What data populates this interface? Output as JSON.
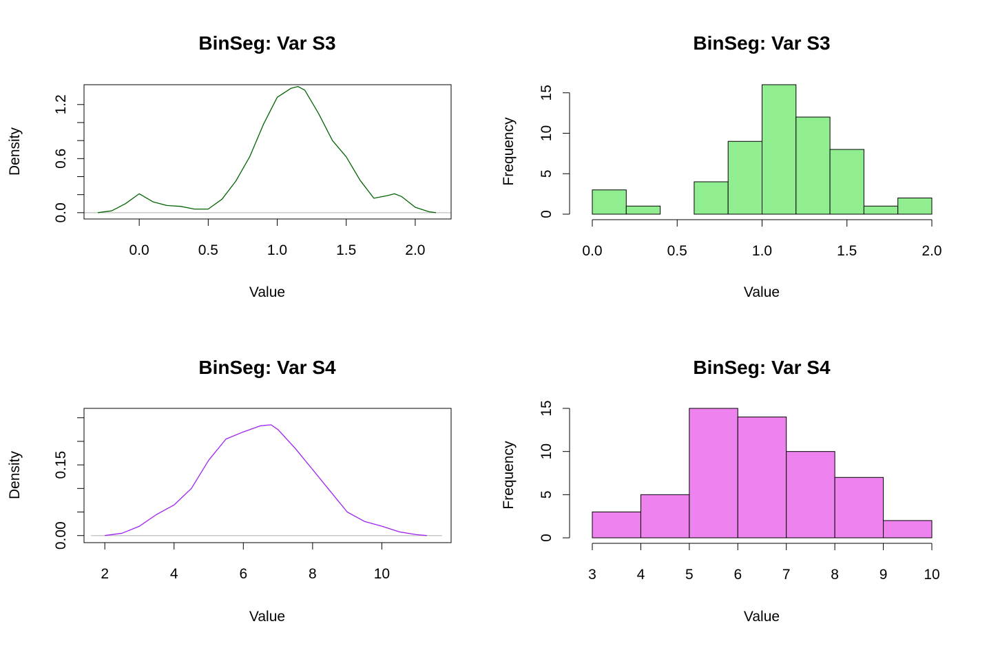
{
  "chart_data": [
    {
      "type": "line",
      "title": "BinSeg: Var S3",
      "xlabel": "Value",
      "ylabel": "Density",
      "xlim": [
        -0.4,
        2.26
      ],
      "ylim": [
        -0.07,
        1.42
      ],
      "xticks": [
        "0.0",
        "0.5",
        "1.0",
        "1.5",
        "2.0"
      ],
      "xtick_values": [
        0,
        0.5,
        1,
        1.5,
        2
      ],
      "yticks": [
        "0.0",
        "0.6",
        "1.2"
      ],
      "ytick_values": [
        0,
        0.6,
        1.2
      ],
      "minor_ytick_values": [
        0.2,
        0.4,
        0.8,
        1.0
      ],
      "color": "#006400",
      "baseline_color": "#bebebe",
      "x": [
        -0.3,
        -0.2,
        -0.1,
        0.0,
        0.1,
        0.2,
        0.3,
        0.4,
        0.5,
        0.6,
        0.7,
        0.8,
        0.9,
        1.0,
        1.1,
        1.15,
        1.2,
        1.3,
        1.4,
        1.5,
        1.6,
        1.7,
        1.8,
        1.85,
        1.9,
        2.0,
        2.1,
        2.15
      ],
      "y": [
        0.0,
        0.02,
        0.1,
        0.21,
        0.12,
        0.08,
        0.07,
        0.04,
        0.04,
        0.15,
        0.35,
        0.62,
        0.98,
        1.28,
        1.38,
        1.4,
        1.36,
        1.1,
        0.8,
        0.62,
        0.36,
        0.16,
        0.19,
        0.21,
        0.18,
        0.06,
        0.01,
        0.0
      ]
    },
    {
      "type": "bar",
      "title": "BinSeg: Var S3",
      "xlabel": "Value",
      "ylabel": "Frequency",
      "xlim": [
        0,
        2
      ],
      "ylim": [
        0,
        16
      ],
      "xticks": [
        "0.0",
        "0.5",
        "1.0",
        "1.5",
        "2.0"
      ],
      "xtick_values": [
        0,
        0.5,
        1,
        1.5,
        2
      ],
      "yticks": [
        "0",
        "5",
        "10",
        "15"
      ],
      "ytick_values": [
        0,
        5,
        10,
        15
      ],
      "bin_edges": [
        0,
        0.2,
        0.4,
        0.6,
        0.8,
        1.0,
        1.2,
        1.4,
        1.6,
        1.8,
        2.0
      ],
      "values": [
        3,
        1,
        0,
        4,
        9,
        16,
        12,
        8,
        1,
        2
      ],
      "color": "#90ee90"
    },
    {
      "type": "line",
      "title": "BinSeg: Var S4",
      "xlabel": "Value",
      "ylabel": "Density",
      "xlim": [
        1.4,
        12.0
      ],
      "ylim": [
        -0.015,
        0.27
      ],
      "xticks": [
        "2",
        "4",
        "6",
        "8",
        "10"
      ],
      "xtick_values": [
        2,
        4,
        6,
        8,
        10
      ],
      "yticks": [
        "0.00",
        "0.15"
      ],
      "ytick_values": [
        0,
        0.15
      ],
      "minor_ytick_values": [
        0.05,
        0.1,
        0.2,
        0.25
      ],
      "color": "#a020f0",
      "baseline_color": "#bebebe",
      "x": [
        2.0,
        2.5,
        3.0,
        3.5,
        4.0,
        4.5,
        5.0,
        5.5,
        6.0,
        6.5,
        6.8,
        7.0,
        7.5,
        8.0,
        8.5,
        9.0,
        9.5,
        10.0,
        10.5,
        11.0,
        11.3
      ],
      "y": [
        0.0,
        0.005,
        0.02,
        0.045,
        0.065,
        0.1,
        0.16,
        0.205,
        0.22,
        0.233,
        0.235,
        0.225,
        0.185,
        0.14,
        0.095,
        0.05,
        0.03,
        0.02,
        0.008,
        0.002,
        0.0
      ]
    },
    {
      "type": "bar",
      "title": "BinSeg: Var S4",
      "xlabel": "Value",
      "ylabel": "Frequency",
      "xlim": [
        3,
        10
      ],
      "ylim": [
        0,
        15
      ],
      "xticks": [
        "3",
        "4",
        "5",
        "6",
        "7",
        "8",
        "9",
        "10"
      ],
      "xtick_values": [
        3,
        4,
        5,
        6,
        7,
        8,
        9,
        10
      ],
      "yticks": [
        "0",
        "5",
        "10",
        "15"
      ],
      "ytick_values": [
        0,
        5,
        10,
        15
      ],
      "bin_edges": [
        3,
        4,
        5,
        6,
        7,
        8,
        9,
        10
      ],
      "values": [
        3,
        5,
        15,
        14,
        10,
        7,
        2
      ],
      "color": "#ee82ee"
    }
  ]
}
